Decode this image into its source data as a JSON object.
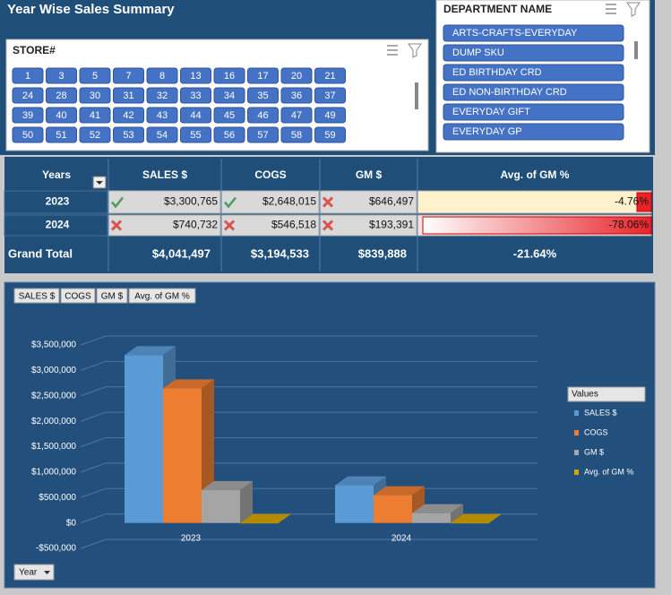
{
  "header": {
    "title": "Year Wise Sales Summary"
  },
  "store_slicer": {
    "title": "STORE#",
    "items": [
      "1",
      "3",
      "5",
      "7",
      "8",
      "13",
      "16",
      "17",
      "20",
      "21",
      "24",
      "28",
      "30",
      "31",
      "32",
      "33",
      "34",
      "35",
      "36",
      "37",
      "39",
      "40",
      "41",
      "42",
      "43",
      "44",
      "45",
      "46",
      "47",
      "49",
      "50",
      "51",
      "52",
      "53",
      "54",
      "55",
      "56",
      "57",
      "58",
      "59"
    ]
  },
  "department_slicer": {
    "title": "DEPARTMENT NAME",
    "items": [
      "ARTS-CRAFTS-EVERYDAY",
      "DUMP SKU",
      "ED BIRTHDAY CRD",
      "ED NON-BIRTHDAY CRD",
      "EVERYDAY GIFT",
      "EVERYDAY GP"
    ]
  },
  "table": {
    "columns": [
      "Years",
      "SALES $",
      "COGS",
      "GM $",
      "Avg. of GM %"
    ],
    "rows": [
      [
        "2023",
        "$3,300,765",
        "$2,648,015",
        "$646,497",
        "-4.76%"
      ],
      [
        "2024",
        "$740,732",
        "$546,518",
        "$193,391",
        "-78.06%"
      ]
    ],
    "total": [
      "Grand Total",
      "$4,041,497",
      "$3,194,533",
      "$839,888",
      "-21.64%"
    ]
  },
  "chart_data": {
    "type": "bar",
    "field_buttons": [
      "SALES $",
      "COGS",
      "GM $",
      "Avg. of GM %"
    ],
    "axis_field": "Year",
    "legend_title": "Values",
    "legend": "right",
    "categories": [
      "2023",
      "2024"
    ],
    "series": [
      {
        "name": "SALES $",
        "color": "#5b9bd5",
        "values": [
          3300765,
          740732
        ]
      },
      {
        "name": "COGS",
        "color": "#ed7d31",
        "values": [
          2648015,
          546518
        ]
      },
      {
        "name": "GM $",
        "color": "#a5a5a5",
        "values": [
          646497,
          193391
        ]
      },
      {
        "name": "Avg. of GM %",
        "color": "#d4a300",
        "values": [
          -0.0476,
          -0.7806
        ]
      }
    ],
    "ylim": [
      -500000,
      3500000
    ],
    "yticks": [
      {
        "value": -500000,
        "label": "-$500,000"
      },
      {
        "value": 0,
        "label": "$0"
      },
      {
        "value": 500000,
        "label": "$500,000"
      },
      {
        "value": 1000000,
        "label": "$1,000,000"
      },
      {
        "value": 1500000,
        "label": "$1,500,000"
      },
      {
        "value": 2000000,
        "label": "$2,000,000"
      },
      {
        "value": 2500000,
        "label": "$2,500,000"
      },
      {
        "value": 3000000,
        "label": "$3,000,000"
      },
      {
        "value": 3500000,
        "label": "$3,500,000"
      }
    ],
    "grid": true
  }
}
